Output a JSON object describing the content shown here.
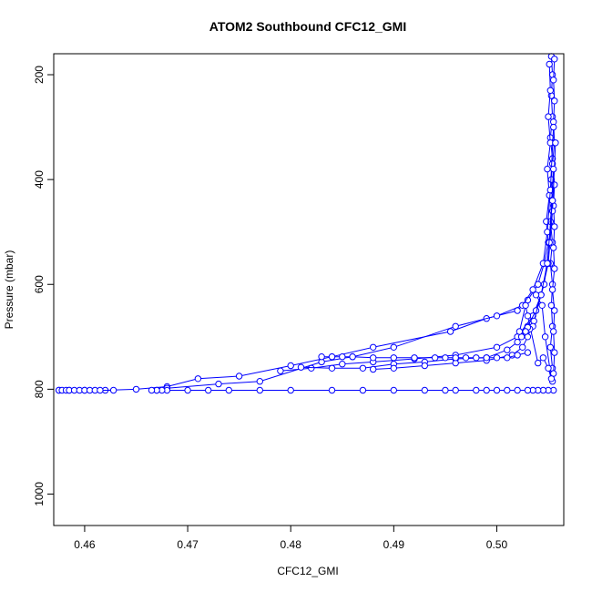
{
  "chart_data": {
    "type": "scatter",
    "title": "ATOM2 Southbound CFC12_GMI",
    "xlabel": "CFC12_GMI",
    "ylabel": "Pressure (mbar)",
    "xlim": [
      0.457,
      0.5065
    ],
    "ylim": [
      1060,
      160
    ],
    "y_reversed": true,
    "xticks": [
      0.46,
      0.47,
      0.48,
      0.49,
      0.5
    ],
    "xtick_labels": [
      "0.46",
      "0.47",
      "0.48",
      "0.49",
      "0.50"
    ],
    "yticks": [
      200,
      400,
      600,
      800,
      1000
    ],
    "ytick_labels": [
      "200",
      "400",
      "600",
      "800",
      "1000"
    ],
    "grid": false,
    "marker": "open-circle",
    "line": true,
    "color": "#0000ff",
    "series": [
      {
        "points": [
          [
            0.5053,
            165
          ],
          [
            0.5054,
            200
          ],
          [
            0.5053,
            240
          ],
          [
            0.5054,
            280
          ],
          [
            0.5052,
            320
          ],
          [
            0.5054,
            360
          ],
          [
            0.5053,
            400
          ],
          [
            0.5054,
            440
          ],
          [
            0.5052,
            480
          ],
          [
            0.5054,
            520
          ],
          [
            0.5052,
            560
          ],
          [
            0.5054,
            600
          ],
          [
            0.5053,
            640
          ],
          [
            0.5054,
            680
          ],
          [
            0.5052,
            720
          ],
          [
            0.5054,
            760
          ],
          [
            0.5054,
            785
          ]
        ]
      },
      {
        "points": [
          [
            0.5056,
            170
          ],
          [
            0.5055,
            210
          ],
          [
            0.5056,
            250
          ],
          [
            0.5055,
            290
          ],
          [
            0.5056,
            330
          ],
          [
            0.5054,
            370
          ],
          [
            0.5056,
            410
          ],
          [
            0.5055,
            450
          ],
          [
            0.5056,
            490
          ],
          [
            0.5055,
            530
          ],
          [
            0.5056,
            570
          ],
          [
            0.5054,
            610
          ],
          [
            0.5056,
            650
          ],
          [
            0.5055,
            690
          ],
          [
            0.5056,
            730
          ],
          [
            0.5055,
            770
          ]
        ]
      },
      {
        "points": [
          [
            0.5051,
            180
          ],
          [
            0.5052,
            230
          ],
          [
            0.505,
            280
          ],
          [
            0.5052,
            330
          ],
          [
            0.5049,
            380
          ],
          [
            0.5051,
            430
          ],
          [
            0.5048,
            480
          ],
          [
            0.505,
            520
          ],
          [
            0.5046,
            560
          ],
          [
            0.504,
            600
          ],
          [
            0.503,
            630
          ],
          [
            0.502,
            650
          ],
          [
            0.499,
            665
          ],
          [
            0.4955,
            690
          ],
          [
            0.488,
            720
          ],
          [
            0.484,
            738
          ],
          [
            0.48,
            755
          ],
          [
            0.475,
            775
          ],
          [
            0.471,
            780
          ],
          [
            0.468,
            795
          ],
          [
            0.465,
            800
          ],
          [
            0.462,
            802
          ],
          [
            0.46,
            802
          ],
          [
            0.4585,
            802
          ],
          [
            0.4575,
            802
          ]
        ]
      },
      {
        "points": [
          [
            0.5055,
            300
          ],
          [
            0.5052,
            420
          ],
          [
            0.5049,
            500
          ],
          [
            0.5045,
            560
          ],
          [
            0.5035,
            610
          ],
          [
            0.5025,
            640
          ],
          [
            0.5,
            660
          ],
          [
            0.496,
            680
          ],
          [
            0.49,
            720
          ],
          [
            0.486,
            738
          ],
          [
            0.483,
            748
          ],
          [
            0.477,
            785
          ],
          [
            0.473,
            790
          ],
          [
            0.468,
            798
          ],
          [
            0.467,
            802
          ]
        ]
      },
      {
        "points": [
          [
            0.5057,
            330
          ],
          [
            0.5054,
            460
          ],
          [
            0.505,
            560
          ],
          [
            0.5043,
            620
          ],
          [
            0.5035,
            660
          ],
          [
            0.502,
            700
          ],
          [
            0.5,
            720
          ],
          [
            0.496,
            735
          ],
          [
            0.492,
            742
          ],
          [
            0.488,
            748
          ],
          [
            0.485,
            752
          ],
          [
            0.482,
            760
          ],
          [
            0.479,
            765
          ]
        ]
      },
      {
        "points": [
          [
            0.5055,
            380
          ],
          [
            0.5051,
            520
          ],
          [
            0.5046,
            600
          ],
          [
            0.5038,
            650
          ],
          [
            0.503,
            680
          ],
          [
            0.502,
            710
          ],
          [
            0.501,
            725
          ],
          [
            0.499,
            740
          ],
          [
            0.496,
            742
          ],
          [
            0.493,
            748
          ],
          [
            0.49,
            752
          ],
          [
            0.487,
            760
          ],
          [
            0.484,
            760
          ],
          [
            0.481,
            758
          ]
        ]
      },
      {
        "points": [
          [
            0.5054,
            440
          ],
          [
            0.5049,
            560
          ],
          [
            0.5043,
            620
          ],
          [
            0.5036,
            670
          ],
          [
            0.503,
            700
          ],
          [
            0.5025,
            720
          ],
          [
            0.5015,
            735
          ],
          [
            0.499,
            745
          ],
          [
            0.496,
            750
          ],
          [
            0.493,
            755
          ],
          [
            0.49,
            760
          ],
          [
            0.488,
            762
          ]
        ]
      },
      {
        "points": [
          [
            0.503,
            730
          ],
          [
            0.502,
            735
          ],
          [
            0.501,
            740
          ],
          [
            0.5,
            740
          ],
          [
            0.499,
            740
          ],
          [
            0.498,
            740
          ],
          [
            0.497,
            740
          ],
          [
            0.496,
            740
          ],
          [
            0.495,
            740
          ],
          [
            0.494,
            740
          ],
          [
            0.492,
            740
          ],
          [
            0.49,
            740
          ],
          [
            0.488,
            740
          ],
          [
            0.486,
            738
          ],
          [
            0.485,
            738
          ],
          [
            0.484,
            738
          ],
          [
            0.483,
            738
          ]
        ]
      },
      {
        "points": [
          [
            0.5055,
            802
          ],
          [
            0.505,
            802
          ],
          [
            0.5045,
            802
          ],
          [
            0.504,
            802
          ],
          [
            0.5035,
            802
          ],
          [
            0.503,
            802
          ],
          [
            0.502,
            802
          ],
          [
            0.501,
            802
          ],
          [
            0.5,
            802
          ],
          [
            0.499,
            802
          ],
          [
            0.498,
            802
          ],
          [
            0.496,
            802
          ],
          [
            0.495,
            802
          ],
          [
            0.493,
            802
          ],
          [
            0.49,
            802
          ],
          [
            0.487,
            802
          ],
          [
            0.484,
            802
          ],
          [
            0.48,
            802
          ],
          [
            0.477,
            802
          ],
          [
            0.474,
            802
          ],
          [
            0.472,
            802
          ],
          [
            0.47,
            802
          ],
          [
            0.468,
            802
          ],
          [
            0.4675,
            802
          ],
          [
            0.467,
            802
          ],
          [
            0.4665,
            802
          ]
        ]
      },
      {
        "points": [
          [
            0.5035,
            680
          ],
          [
            0.5032,
            685
          ],
          [
            0.503,
            682
          ],
          [
            0.5028,
            690
          ],
          [
            0.5024,
            700
          ],
          [
            0.5022,
            690
          ],
          [
            0.5028,
            640
          ],
          [
            0.503,
            660
          ],
          [
            0.504,
            750
          ],
          [
            0.5045,
            740
          ],
          [
            0.505,
            760
          ],
          [
            0.5053,
            780
          ],
          [
            0.5047,
            700
          ],
          [
            0.5044,
            640
          ],
          [
            0.5038,
            620
          ]
        ]
      },
      {
        "points": [
          [
            0.4575,
            802
          ],
          [
            0.4578,
            802
          ],
          [
            0.4582,
            802
          ],
          [
            0.4585,
            802
          ],
          [
            0.459,
            802
          ],
          [
            0.4595,
            802
          ],
          [
            0.46,
            802
          ],
          [
            0.4605,
            802
          ],
          [
            0.461,
            802
          ],
          [
            0.4615,
            802
          ],
          [
            0.4628,
            802
          ]
        ]
      }
    ]
  }
}
